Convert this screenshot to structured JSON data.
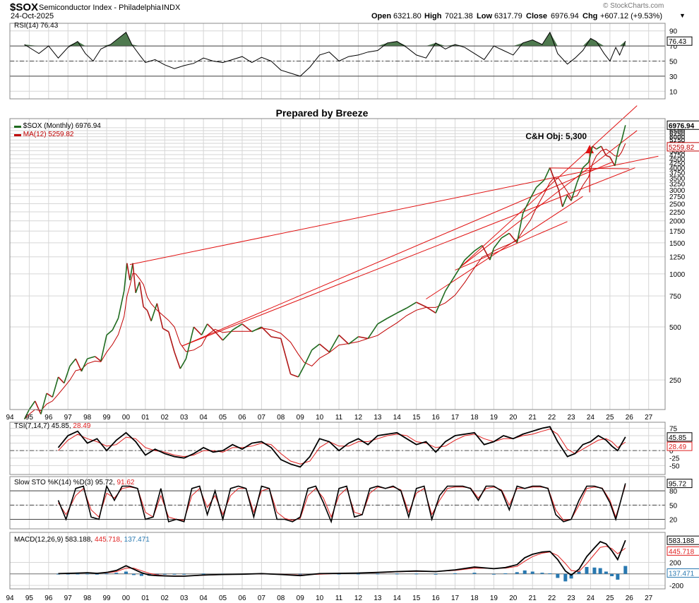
{
  "header": {
    "symbol": "$SOX",
    "name": "Semiconductor Index - Philadelphia",
    "exchange": "INDX",
    "date": "24-Oct-2025",
    "open_label": "Open",
    "open": "6321.80",
    "high_label": "High",
    "high": "7021.38",
    "low_label": "Low",
    "low": "6317.79",
    "close_label": "Close",
    "close": "6976.94",
    "chg_label": "Chg",
    "chg": "+607.12 (+9.53%)",
    "caret": "▼",
    "watermark": "© StockCharts.com"
  },
  "colors": {
    "price": "#1f6b1f",
    "price_down": "#b01818",
    "ma": "#c00000",
    "trend": "#e01010",
    "grid": "#d6d6d6",
    "fill": "#4f7a4f",
    "hist": "#2878b0",
    "macd_sig": "#e02020",
    "tsi_sig": "#e02020"
  },
  "chart_data": [
    {
      "type": "line",
      "title": "RSI(14) 76.43",
      "label": "RSI(14)",
      "value": "76.43",
      "value_num": 76.43,
      "ylim": [
        0,
        100
      ],
      "ticks": [
        90,
        70,
        50,
        30,
        10
      ],
      "levels": [
        70,
        50,
        30
      ],
      "x": [
        1994.75,
        1995.5,
        1996.0,
        1996.5,
        1997.0,
        1997.5,
        1997.9,
        1998.3,
        1998.7,
        1999.2,
        1999.6,
        2000.0,
        2000.3,
        2000.7,
        2001.0,
        2001.5,
        2002.0,
        2002.5,
        2003.0,
        2003.5,
        2004.0,
        2004.5,
        2005.0,
        2005.5,
        2006.0,
        2006.5,
        2007.0,
        2007.5,
        2008.0,
        2008.5,
        2009.0,
        2009.5,
        2010.0,
        2010.5,
        2011.0,
        2011.5,
        2012.0,
        2012.5,
        2013.0,
        2013.5,
        2014.0,
        2014.5,
        2015.0,
        2015.5,
        2016.0,
        2016.5,
        2017.0,
        2017.5,
        2018.0,
        2018.5,
        2019.0,
        2019.5,
        2020.0,
        2020.5,
        2021.0,
        2021.5,
        2021.9,
        2022.3,
        2022.8,
        2023.2,
        2023.6,
        2024.0,
        2024.3,
        2024.7,
        2025.0,
        2025.3,
        2025.5,
        2025.8
      ],
      "values": [
        72,
        60,
        70,
        54,
        68,
        76,
        60,
        50,
        66,
        72,
        80,
        88,
        72,
        58,
        48,
        52,
        45,
        40,
        44,
        47,
        54,
        50,
        48,
        52,
        56,
        48,
        55,
        50,
        38,
        34,
        30,
        42,
        58,
        62,
        50,
        56,
        58,
        62,
        64,
        74,
        76,
        68,
        58,
        54,
        74,
        66,
        72,
        68,
        60,
        52,
        70,
        64,
        58,
        74,
        78,
        72,
        88,
        60,
        46,
        54,
        64,
        80,
        76,
        60,
        50,
        68,
        58,
        76.43
      ]
    },
    {
      "type": "line",
      "title": "$SOX (Monthly) 6976.94",
      "series_label": "$SOX (Monthly)",
      "series_value": "6976.94",
      "ma_label": "MA(12)",
      "ma_value": "5259.82",
      "ma_value_num": 5259.82,
      "last_value": "6976.94",
      "last_value_num": 6976.94,
      "annotation": "Prepared by Breeze",
      "target_label": "C&H Obj: 5,300",
      "target_value": 5300,
      "target_x": 2023.95,
      "scale": "log",
      "ylim": [
        170,
        7600
      ],
      "yticks": [
        250,
        500,
        750,
        1000,
        1250,
        1500,
        1750,
        2000,
        2250,
        2500,
        2750,
        3000,
        3250,
        3500,
        3750,
        4000,
        4250,
        4500,
        4750,
        5000,
        5250,
        5500,
        5750,
        6000,
        6250,
        6500,
        6750
      ],
      "xticks": [
        "94",
        "95",
        "96",
        "97",
        "98",
        "99",
        "00",
        "01",
        "02",
        "03",
        "04",
        "05",
        "06",
        "07",
        "08",
        "09",
        "10",
        "11",
        "12",
        "13",
        "14",
        "15",
        "16",
        "17",
        "18",
        "19",
        "20",
        "21",
        "22",
        "23",
        "24",
        "25",
        "26",
        "27"
      ],
      "x": [
        1994.75,
        1995.0,
        1995.3,
        1995.6,
        1995.9,
        1996.2,
        1996.5,
        1996.8,
        1997.1,
        1997.4,
        1997.7,
        1998.0,
        1998.4,
        1998.7,
        1999.0,
        1999.3,
        1999.6,
        1999.9,
        2000.05,
        2000.2,
        2000.35,
        2000.5,
        2000.7,
        2000.9,
        2001.1,
        2001.3,
        2001.6,
        2001.9,
        2002.2,
        2002.5,
        2002.8,
        2003.1,
        2003.5,
        2003.9,
        2004.2,
        2004.6,
        2005.0,
        2005.5,
        2006.0,
        2006.5,
        2007.0,
        2007.5,
        2008.0,
        2008.5,
        2008.9,
        2009.2,
        2009.6,
        2010.0,
        2010.5,
        2011.0,
        2011.5,
        2012.0,
        2012.5,
        2013.0,
        2013.5,
        2014.0,
        2014.5,
        2015.0,
        2015.5,
        2016.0,
        2016.5,
        2017.0,
        2017.5,
        2018.0,
        2018.4,
        2018.8,
        2019.0,
        2019.4,
        2019.8,
        2020.2,
        2020.5,
        2020.9,
        2021.2,
        2021.6,
        2021.9,
        2022.1,
        2022.35,
        2022.55,
        2022.8,
        2023.0,
        2023.3,
        2023.6,
        2023.9,
        2024.1,
        2024.3,
        2024.55,
        2024.8,
        2025.0,
        2025.25,
        2025.45,
        2025.6,
        2025.8
      ],
      "values": [
        150,
        170,
        190,
        160,
        210,
        200,
        260,
        240,
        300,
        330,
        280,
        330,
        340,
        320,
        450,
        480,
        560,
        800,
        1150,
        920,
        1150,
        780,
        900,
        650,
        620,
        540,
        680,
        490,
        470,
        360,
        290,
        330,
        500,
        450,
        520,
        470,
        420,
        480,
        520,
        470,
        500,
        440,
        430,
        270,
        260,
        300,
        370,
        400,
        360,
        450,
        400,
        440,
        430,
        520,
        560,
        600,
        640,
        690,
        650,
        600,
        800,
        980,
        1200,
        1350,
        1450,
        1200,
        1400,
        1600,
        1700,
        1500,
        2200,
        2700,
        3100,
        3400,
        4000,
        3500,
        3000,
        2400,
        2800,
        2600,
        3300,
        4000,
        4300,
        5300,
        5100,
        5300,
        4700,
        4600,
        4100,
        5200,
        5700,
        6976.94
      ]
    },
    {
      "type": "line",
      "title": "TSI(7,14,7) 45.85, 28.49",
      "label": "TSI(7,14,7)",
      "value1": "45.85",
      "value2": "28.49",
      "value1_num": 45.85,
      "value2_num": 28.49,
      "ylim": [
        -80,
        95
      ],
      "ticks": [
        75,
        50,
        25,
        0,
        -25,
        -50
      ],
      "level": 0,
      "x": [
        1996.5,
        1997.0,
        1997.5,
        1998.0,
        1998.5,
        1999.0,
        1999.5,
        2000.0,
        2000.5,
        2001.0,
        2001.5,
        2002.0,
        2002.5,
        2003.0,
        2003.5,
        2004.0,
        2004.5,
        2005.0,
        2005.5,
        2006.0,
        2006.5,
        2007.0,
        2007.5,
        2008.0,
        2008.5,
        2009.0,
        2009.5,
        2010.0,
        2010.5,
        2011.0,
        2011.5,
        2012.0,
        2012.5,
        2013.0,
        2013.5,
        2014.0,
        2014.5,
        2015.0,
        2015.5,
        2016.0,
        2016.5,
        2017.0,
        2017.5,
        2018.0,
        2018.5,
        2019.0,
        2019.5,
        2020.0,
        2020.5,
        2021.0,
        2021.5,
        2021.9,
        2022.3,
        2022.8,
        2023.2,
        2023.6,
        2024.0,
        2024.4,
        2024.8,
        2025.1,
        2025.4,
        2025.8
      ],
      "values": [
        10,
        50,
        65,
        25,
        40,
        0,
        35,
        60,
        30,
        -15,
        5,
        -10,
        -20,
        -25,
        -10,
        10,
        -5,
        0,
        20,
        5,
        25,
        30,
        10,
        -30,
        -45,
        -55,
        -20,
        40,
        30,
        0,
        25,
        40,
        20,
        50,
        55,
        60,
        40,
        20,
        30,
        -5,
        30,
        50,
        55,
        60,
        20,
        30,
        50,
        40,
        55,
        65,
        75,
        80,
        30,
        -20,
        -10,
        20,
        30,
        50,
        35,
        15,
        0,
        45.85
      ],
      "values2": [
        0,
        35,
        55,
        40,
        30,
        15,
        20,
        45,
        40,
        10,
        0,
        -5,
        -15,
        -20,
        -15,
        0,
        0,
        -5,
        10,
        10,
        15,
        25,
        20,
        -10,
        -35,
        -45,
        -35,
        10,
        30,
        15,
        15,
        30,
        30,
        40,
        50,
        55,
        50,
        30,
        25,
        10,
        15,
        35,
        50,
        55,
        40,
        30,
        40,
        40,
        50,
        55,
        65,
        72,
        55,
        5,
        -10,
        5,
        20,
        35,
        40,
        30,
        10,
        28.49
      ]
    },
    {
      "type": "line",
      "title": "Slow STO %K(14) %D(3) 95.72, 91.62",
      "label": "Slow STO %K(14) %D(3)",
      "value1": "95.72",
      "value2": "91.62",
      "value1_num": 95.72,
      "value2_num": 91.62,
      "ylim": [
        0,
        110
      ],
      "ticks": [
        80,
        50,
        20
      ],
      "levels": [
        80,
        50,
        20
      ],
      "x": [
        1996.5,
        1996.9,
        1997.4,
        1997.8,
        1998.2,
        1998.6,
        1999.0,
        1999.4,
        1999.8,
        2000.2,
        2000.6,
        2001.0,
        2001.4,
        2001.8,
        2002.2,
        2002.6,
        2003.0,
        2003.4,
        2003.8,
        2004.2,
        2004.6,
        2005.0,
        2005.4,
        2005.8,
        2006.2,
        2006.6,
        2007.0,
        2007.4,
        2007.8,
        2008.2,
        2008.6,
        2009.0,
        2009.4,
        2009.8,
        2010.2,
        2010.6,
        2011.0,
        2011.4,
        2011.8,
        2012.2,
        2012.6,
        2013.0,
        2013.4,
        2013.8,
        2014.2,
        2014.6,
        2015.0,
        2015.4,
        2015.8,
        2016.2,
        2016.6,
        2017.0,
        2017.4,
        2017.8,
        2018.2,
        2018.6,
        2019.0,
        2019.4,
        2019.8,
        2020.2,
        2020.6,
        2021.0,
        2021.4,
        2021.8,
        2022.2,
        2022.6,
        2023.0,
        2023.4,
        2023.8,
        2024.2,
        2024.6,
        2025.0,
        2025.3,
        2025.8
      ],
      "values": [
        60,
        20,
        85,
        90,
        25,
        20,
        90,
        60,
        90,
        90,
        85,
        20,
        25,
        85,
        15,
        20,
        15,
        85,
        90,
        30,
        80,
        20,
        85,
        90,
        85,
        25,
        90,
        85,
        20,
        20,
        15,
        25,
        85,
        90,
        55,
        15,
        85,
        90,
        25,
        30,
        85,
        90,
        85,
        90,
        80,
        25,
        85,
        90,
        20,
        70,
        90,
        90,
        90,
        85,
        60,
        90,
        90,
        80,
        40,
        90,
        85,
        90,
        90,
        85,
        30,
        15,
        20,
        60,
        90,
        90,
        85,
        55,
        20,
        95.72
      ],
      "values2": [
        55,
        30,
        70,
        85,
        40,
        25,
        75,
        65,
        85,
        88,
        85,
        35,
        25,
        70,
        25,
        20,
        18,
        70,
        85,
        45,
        70,
        30,
        70,
        85,
        85,
        35,
        80,
        85,
        35,
        22,
        18,
        22,
        70,
        85,
        65,
        25,
        70,
        85,
        35,
        30,
        75,
        88,
        85,
        88,
        82,
        35,
        75,
        85,
        30,
        60,
        85,
        88,
        88,
        86,
        65,
        85,
        88,
        82,
        50,
        85,
        85,
        88,
        88,
        86,
        40,
        18,
        20,
        50,
        85,
        88,
        86,
        60,
        25,
        91.62
      ]
    },
    {
      "type": "line",
      "title": "MACD(12,26,9) 583.188, 445.718, 137.471",
      "label": "MACD(12,26,9)",
      "value1": "583.188",
      "value2": "445.718",
      "value3": "137.471",
      "value1_num": 583.188,
      "value2_num": 445.718,
      "value3_num": 137.471,
      "ylim": [
        -260,
        720
      ],
      "ticks": [
        200,
        0,
        -200
      ],
      "level": 0,
      "x": [
        1996.5,
        1997.0,
        1997.5,
        1998.0,
        1998.5,
        1999.0,
        1999.5,
        2000.0,
        2000.4,
        2000.8,
        2001.2,
        2001.6,
        2002.0,
        2002.5,
        2003.0,
        2004.0,
        2005.0,
        2006.0,
        2007.0,
        2008.0,
        2009.0,
        2010.0,
        2011.0,
        2012.0,
        2013.0,
        2014.0,
        2015.0,
        2016.0,
        2017.0,
        2018.0,
        2019.0,
        2019.6,
        2020.2,
        2020.6,
        2021.0,
        2021.5,
        2021.9,
        2022.3,
        2022.7,
        2023.0,
        2023.4,
        2023.8,
        2024.2,
        2024.5,
        2024.8,
        2025.1,
        2025.4,
        2025.8
      ],
      "values": [
        5,
        10,
        15,
        20,
        10,
        25,
        60,
        140,
        80,
        20,
        -20,
        -30,
        -35,
        -40,
        -40,
        -20,
        -10,
        -5,
        5,
        -10,
        -30,
        5,
        10,
        15,
        25,
        40,
        50,
        40,
        70,
        120,
        90,
        110,
        160,
        280,
        340,
        380,
        390,
        250,
        50,
        -20,
        80,
        300,
        450,
        560,
        520,
        400,
        250,
        583.188
      ],
      "values2": [
        3,
        8,
        12,
        16,
        14,
        18,
        40,
        100,
        100,
        55,
        10,
        -15,
        -30,
        -35,
        -38,
        -25,
        -12,
        -6,
        2,
        -5,
        -20,
        -5,
        8,
        12,
        20,
        35,
        45,
        42,
        60,
        100,
        95,
        100,
        130,
        220,
        300,
        360,
        380,
        320,
        180,
        60,
        40,
        180,
        340,
        460,
        480,
        440,
        350,
        445.718
      ],
      "hist": [
        2,
        2,
        3,
        4,
        -4,
        7,
        20,
        40,
        -20,
        -35,
        -30,
        -15,
        -5,
        -5,
        -2,
        5,
        2,
        1,
        3,
        -5,
        -10,
        10,
        2,
        3,
        5,
        5,
        5,
        -2,
        10,
        20,
        -5,
        10,
        30,
        60,
        40,
        20,
        10,
        -70,
        -130,
        -80,
        40,
        120,
        110,
        100,
        40,
        -40,
        -100,
        137.471
      ]
    }
  ]
}
